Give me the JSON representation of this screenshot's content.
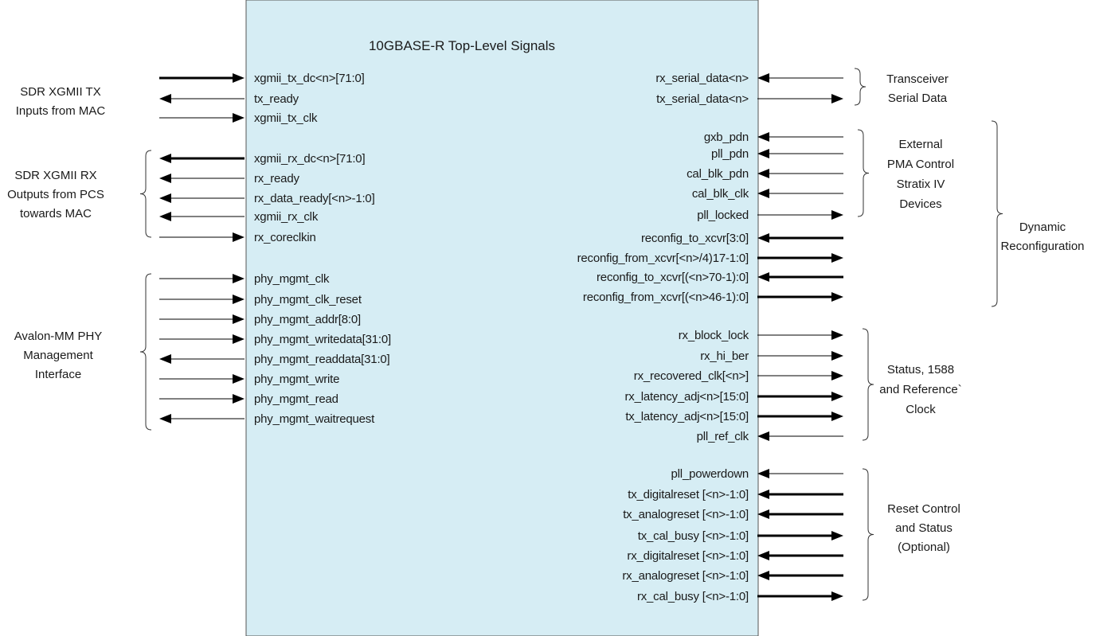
{
  "title": "10GBASE-R Top-Level Signals",
  "colors": {
    "block_fill": "#d6edf4",
    "block_stroke": "#555555",
    "line": "#000000"
  },
  "left_signals": [
    {
      "label": "xgmii_tx_dc<n>[71:0]",
      "dir": "in",
      "bus": true
    },
    {
      "label": "tx_ready",
      "dir": "out",
      "bus": false
    },
    {
      "label": "xgmii_tx_clk",
      "dir": "in",
      "bus": false
    },
    {
      "label": "xgmii_rx_dc<n>[71:0]",
      "dir": "out",
      "bus": true
    },
    {
      "label": "rx_ready",
      "dir": "out",
      "bus": false
    },
    {
      "label": "rx_data_ready[<n>-1:0]",
      "dir": "out",
      "bus": false
    },
    {
      "label": "xgmii_rx_clk",
      "dir": "out",
      "bus": false
    },
    {
      "label": "rx_coreclkin",
      "dir": "in",
      "bus": false
    },
    {
      "label": "phy_mgmt_clk",
      "dir": "in",
      "bus": false
    },
    {
      "label": "phy_mgmt_clk_reset",
      "dir": "in",
      "bus": false
    },
    {
      "label": "phy_mgmt_addr[8:0]",
      "dir": "in",
      "bus": false
    },
    {
      "label": "phy_mgmt_writedata[31:0]",
      "dir": "in",
      "bus": false
    },
    {
      "label": "phy_mgmt_readdata[31:0]",
      "dir": "out",
      "bus": false
    },
    {
      "label": "phy_mgmt_write",
      "dir": "in",
      "bus": false
    },
    {
      "label": "phy_mgmt_read",
      "dir": "in",
      "bus": false
    },
    {
      "label": "phy_mgmt_waitrequest",
      "dir": "out",
      "bus": false
    }
  ],
  "right_signals": [
    {
      "label": "rx_serial_data<n>",
      "dir": "in",
      "bus": false
    },
    {
      "label": "tx_serial_data<n>",
      "dir": "out",
      "bus": false
    },
    {
      "label": "gxb_pdn",
      "dir": "in",
      "bus": false
    },
    {
      "label": "pll_pdn",
      "dir": "in",
      "bus": false
    },
    {
      "label": "cal_blk_pdn",
      "dir": "in",
      "bus": false
    },
    {
      "label": "cal_blk_clk",
      "dir": "in",
      "bus": false
    },
    {
      "label": "pll_locked",
      "dir": "out",
      "bus": false
    },
    {
      "label": "reconfig_to_xcvr[3:0]",
      "dir": "in",
      "bus": true
    },
    {
      "label": "reconfig_from_xcvr[<n>/4)17-1:0]",
      "dir": "out",
      "bus": true
    },
    {
      "label": "reconfig_to_xcvr[(<n>70-1):0]",
      "dir": "in",
      "bus": true
    },
    {
      "label": "reconfig_from_xcvr[(<n>46-1):0]",
      "dir": "out",
      "bus": true
    },
    {
      "label": "rx_block_lock",
      "dir": "out",
      "bus": false
    },
    {
      "label": "rx_hi_ber",
      "dir": "out",
      "bus": false
    },
    {
      "label": "rx_recovered_clk[<n>]",
      "dir": "out",
      "bus": false
    },
    {
      "label": "rx_latency_adj<n>[15:0]",
      "dir": "out",
      "bus": true
    },
    {
      "label": "tx_latency_adj<n>[15:0]",
      "dir": "out",
      "bus": true
    },
    {
      "label": "pll_ref_clk",
      "dir": "in",
      "bus": false
    },
    {
      "label": "pll_powerdown",
      "dir": "in",
      "bus": false
    },
    {
      "label": "tx_digitalreset [<n>-1:0]",
      "dir": "in",
      "bus": true
    },
    {
      "label": "tx_analogreset [<n>-1:0]",
      "dir": "in",
      "bus": true
    },
    {
      "label": "tx_cal_busy [<n>-1:0]",
      "dir": "out",
      "bus": true
    },
    {
      "label": "rx_digitalreset [<n>-1:0]",
      "dir": "in",
      "bus": true
    },
    {
      "label": "rx_analogreset [<n>-1:0]",
      "dir": "in",
      "bus": true
    },
    {
      "label": "rx_cal_busy [<n>-1:0]",
      "dir": "out",
      "bus": true
    }
  ],
  "left_groups": [
    {
      "lines": [
        "SDR XGMII TX",
        "Inputs from MAC"
      ]
    },
    {
      "lines": [
        "SDR XGMII RX",
        "Outputs from PCS",
        "towards MAC"
      ]
    },
    {
      "lines": [
        "Avalon-MM PHY",
        "Management",
        "Interface"
      ]
    }
  ],
  "right_groups": [
    {
      "lines": [
        "Transceiver",
        "Serial Data"
      ]
    },
    {
      "lines": [
        "External",
        "PMA Control",
        "Stratix IV",
        "Devices"
      ]
    },
    {
      "lines": [
        "Status, 1588",
        "and Reference`",
        "Clock"
      ]
    },
    {
      "lines": [
        "Reset Control",
        "and  Status",
        "(Optional)"
      ]
    },
    {
      "lines": [
        "Dynamic",
        "Reconfiguration"
      ]
    }
  ]
}
